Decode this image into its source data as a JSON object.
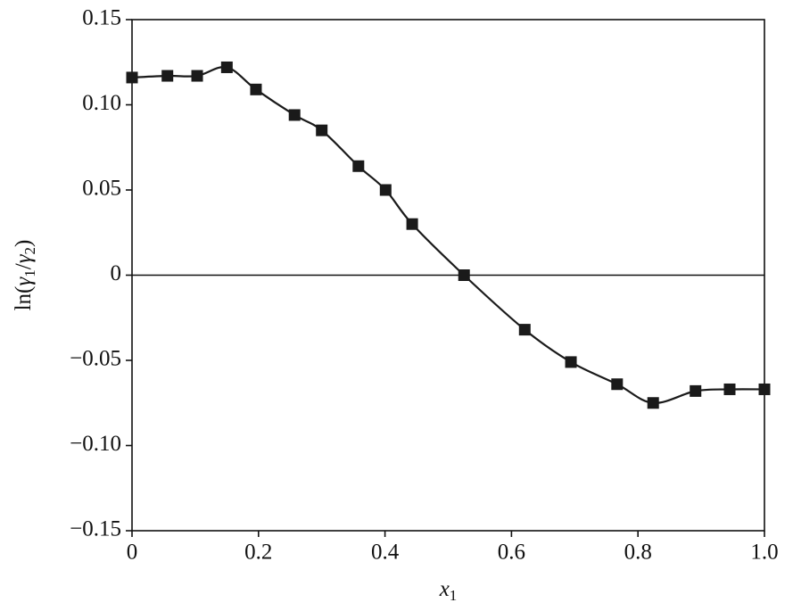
{
  "chart_data": {
    "type": "line",
    "xlabel": [
      "x",
      "1"
    ],
    "ylabel": [
      "ln(",
      "γ",
      "1",
      "/",
      "γ",
      "2",
      ")"
    ],
    "x": [
      0,
      0.056,
      0.103,
      0.15,
      0.196,
      0.257,
      0.3,
      0.358,
      0.401,
      0.443,
      0.525,
      0.621,
      0.694,
      0.767,
      0.824,
      0.891,
      0.945,
      1.0
    ],
    "series": [
      {
        "color": "#1a1a1a",
        "values": [
          0.116,
          0.117,
          0.117,
          0.122,
          0.109,
          0.094,
          0.085,
          0.064,
          0.05,
          0.03,
          0,
          -0.032,
          -0.051,
          -0.064,
          -0.075,
          -0.068,
          -0.067,
          -0.067
        ]
      }
    ],
    "xlim": [
      0,
      1.0
    ],
    "xticks": [
      0,
      0.2,
      0.4,
      0.6,
      0.8,
      {
        "value": 1.0,
        "label": "1.0"
      }
    ],
    "ylim": [
      -0.15,
      0.15
    ],
    "yticks": [
      0.15,
      {
        "value": 0.1,
        "label": "0.10"
      },
      {
        "value": 0.05,
        "label": "0.05"
      },
      0,
      {
        "value": -0.05,
        "label": "−0.05"
      },
      {
        "value": -0.1,
        "label": "−0.10"
      },
      {
        "value": -0.15,
        "label": "−0.15"
      }
    ],
    "zero_line": true,
    "marker": "square"
  }
}
